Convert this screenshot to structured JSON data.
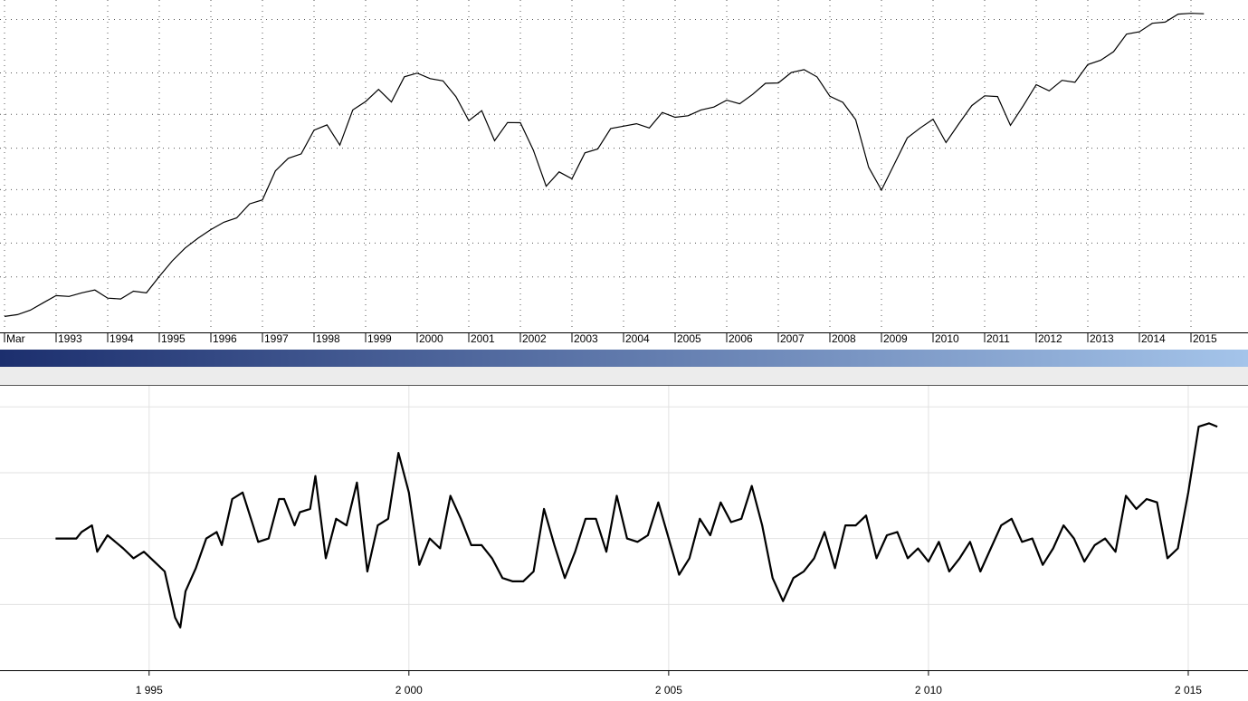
{
  "chart_data": [
    {
      "type": "line",
      "log_scale": true,
      "grid": true,
      "color": "#000000",
      "categories": [
        "Mar",
        null,
        null,
        null,
        "1993",
        null,
        null,
        null,
        "1994",
        null,
        null,
        null,
        "1995",
        null,
        null,
        null,
        "1996",
        null,
        null,
        null,
        "1997",
        null,
        null,
        null,
        "1998",
        null,
        null,
        null,
        "1999",
        null,
        null,
        null,
        "2000",
        null,
        null,
        null,
        "2001",
        null,
        null,
        null,
        "2002",
        null,
        null,
        null,
        "2003",
        null,
        null,
        null,
        "2004",
        null,
        null,
        null,
        "2005",
        null,
        null,
        null,
        "2006",
        null,
        null,
        null,
        "2007",
        null,
        null,
        null,
        "2008",
        null,
        null,
        null,
        "2009",
        null,
        null,
        null,
        "2010",
        null,
        null,
        null,
        "2011",
        null,
        null,
        null,
        "2012",
        null,
        null,
        null,
        "2013",
        null,
        null,
        null,
        "2014",
        null,
        null,
        null,
        "2015",
        null
      ],
      "values": [
        404,
        408,
        418,
        435,
        452,
        450,
        459,
        466,
        446,
        444,
        463,
        459,
        501,
        545,
        584,
        616,
        645,
        671,
        687,
        741,
        757,
        885,
        947,
        970,
        1102,
        1134,
        1017,
        1229,
        1286,
        1373,
        1283,
        1469,
        1499,
        1455,
        1437,
        1320,
        1160,
        1224,
        1041,
        1148,
        1147,
        990,
        815,
        880,
        848,
        975,
        996,
        1112,
        1126,
        1141,
        1115,
        1212,
        1181,
        1191,
        1229,
        1248,
        1295,
        1270,
        1336,
        1418,
        1421,
        1503,
        1527,
        1468,
        1323,
        1280,
        1166,
        903,
        798,
        919,
        1057,
        1115,
        1169,
        1031,
        1141,
        1258,
        1326,
        1321,
        1131,
        1258,
        1408,
        1362,
        1441,
        1426,
        1569,
        1606,
        1682,
        1848,
        1872,
        1960,
        1972,
        2059,
        2068,
        2063
      ],
      "ylim": [
        380,
        2200
      ],
      "yticks": [
        500,
        600,
        700,
        800,
        1000,
        1200,
        1500,
        2000
      ]
    },
    {
      "type": "line",
      "grid": true,
      "color": "#000000",
      "x": [
        1993.2,
        1993.6,
        1993.7,
        1993.9,
        1994.0,
        1994.2,
        1994.5,
        1994.7,
        1994.9,
        1995.1,
        1995.3,
        1995.5,
        1995.6,
        1995.7,
        1995.9,
        1996.1,
        1996.3,
        1996.4,
        1996.6,
        1996.8,
        1997.0,
        1997.1,
        1997.3,
        1997.5,
        1997.6,
        1997.8,
        1997.9,
        1998.1,
        1998.2,
        1998.4,
        1998.6,
        1998.8,
        1999.0,
        1999.2,
        1999.4,
        1999.6,
        1999.8,
        2000.0,
        2000.2,
        2000.4,
        2000.6,
        2000.8,
        2001.0,
        2001.2,
        2001.4,
        2001.6,
        2001.8,
        2002.0,
        2002.2,
        2002.4,
        2002.6,
        2002.8,
        2003.0,
        2003.2,
        2003.4,
        2003.6,
        2003.8,
        2004.0,
        2004.2,
        2004.4,
        2004.6,
        2004.8,
        2005.0,
        2005.2,
        2005.4,
        2005.6,
        2005.8,
        2006.0,
        2006.2,
        2006.4,
        2006.6,
        2006.8,
        2007.0,
        2007.2,
        2007.4,
        2007.6,
        2007.8,
        2008.0,
        2008.2,
        2008.4,
        2008.6,
        2008.8,
        2009.0,
        2009.2,
        2009.4,
        2009.6,
        2009.8,
        2010.0,
        2010.2,
        2010.4,
        2010.6,
        2010.8,
        2011.0,
        2011.2,
        2011.4,
        2011.6,
        2011.8,
        2012.0,
        2012.2,
        2012.4,
        2012.6,
        2012.8,
        2013.0,
        2013.2,
        2013.4,
        2013.6,
        2013.8,
        2014.0,
        2014.2,
        2014.4,
        2014.6,
        2014.8,
        2015.0,
        2015.2,
        2015.4,
        2015.56
      ],
      "values": [
        0,
        0,
        0.1,
        0.2,
        -0.2,
        0.05,
        -0.15,
        -0.3,
        -0.2,
        -0.35,
        -0.5,
        -1.2,
        -1.35,
        -0.8,
        -0.45,
        0,
        0.1,
        -0.1,
        0.6,
        0.7,
        0.2,
        -0.05,
        0,
        0.6,
        0.6,
        0.2,
        0.4,
        0.45,
        0.95,
        -0.3,
        0.3,
        0.2,
        0.85,
        -0.5,
        0.2,
        0.3,
        1.3,
        0.7,
        -0.4,
        0,
        -0.15,
        0.65,
        0.3,
        -0.1,
        -0.1,
        -0.3,
        -0.6,
        -0.65,
        -0.65,
        -0.5,
        0.45,
        -0.1,
        -0.6,
        -0.2,
        0.3,
        0.3,
        -0.2,
        0.65,
        0,
        -0.05,
        0.05,
        0.55,
        0,
        -0.55,
        -0.3,
        0.3,
        0.05,
        0.55,
        0.25,
        0.3,
        0.8,
        0.2,
        -0.6,
        -0.95,
        -0.6,
        -0.5,
        -0.3,
        0.1,
        -0.45,
        0.2,
        0.2,
        0.35,
        -0.3,
        0.05,
        0.1,
        -0.3,
        -0.15,
        -0.35,
        -0.05,
        -0.5,
        -0.3,
        -0.05,
        -0.5,
        -0.15,
        0.2,
        0.3,
        -0.05,
        0,
        -0.4,
        -0.15,
        0.2,
        0,
        -0.35,
        -0.1,
        0,
        -0.2,
        0.65,
        0.45,
        0.6,
        0.55,
        -0.3,
        -0.15,
        0.7,
        1.7,
        1.75,
        1.7
      ],
      "xlim": [
        1992.13,
        2016.15
      ],
      "xticks": [
        {
          "value": 1995,
          "label": "1 995"
        },
        {
          "value": 2000,
          "label": "2 000"
        },
        {
          "value": 2005,
          "label": "2 005"
        },
        {
          "value": 2010,
          "label": "2 010"
        },
        {
          "value": 2015,
          "label": "2 015"
        }
      ],
      "ylim": [
        -2,
        2.32
      ],
      "yticks": [
        -1,
        0,
        1,
        2
      ]
    }
  ]
}
